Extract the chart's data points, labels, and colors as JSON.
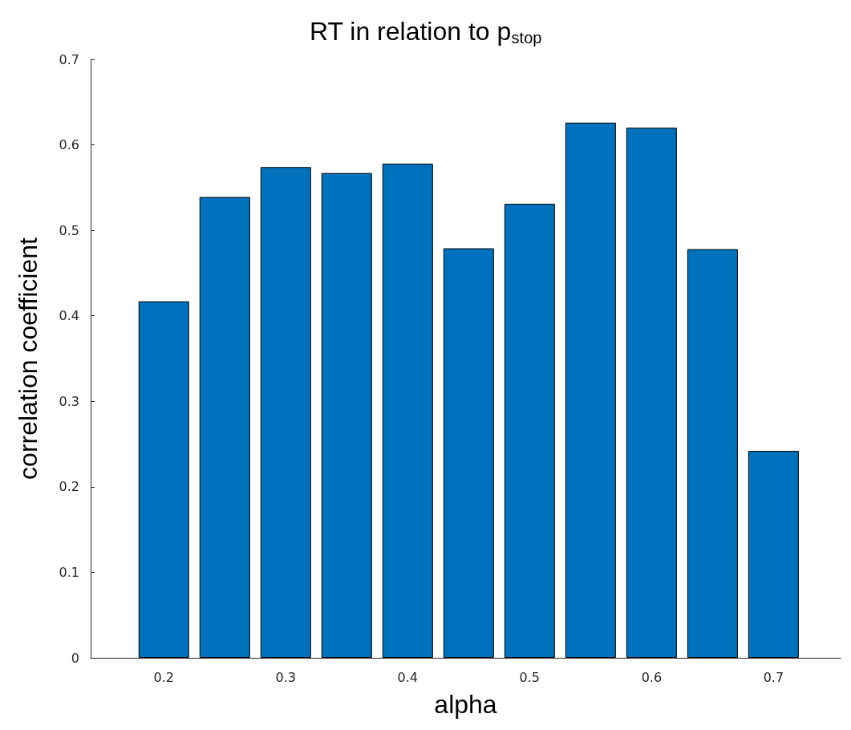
{
  "chart_data": {
    "type": "bar",
    "title": "RT in relation to p$_{stop}$",
    "xlabel": "alpha",
    "ylabel": "correlation coefficient",
    "x": [
      0.2,
      0.25,
      0.3,
      0.35,
      0.4,
      0.45,
      0.5,
      0.55,
      0.6,
      0.65,
      0.7
    ],
    "values": [
      0.417,
      0.539,
      0.574,
      0.567,
      0.578,
      0.479,
      0.531,
      0.626,
      0.62,
      0.478,
      0.242
    ],
    "color": "#0072bd",
    "xlim": [
      0.14,
      0.755
    ],
    "xticks": [
      0.2,
      0.3,
      0.4,
      0.5,
      0.6,
      0.7
    ],
    "ylim": [
      0,
      0.7
    ],
    "yticks": [
      0,
      0.1,
      0.2,
      0.3,
      0.4,
      0.5,
      0.6,
      0.7
    ],
    "grid": false
  }
}
